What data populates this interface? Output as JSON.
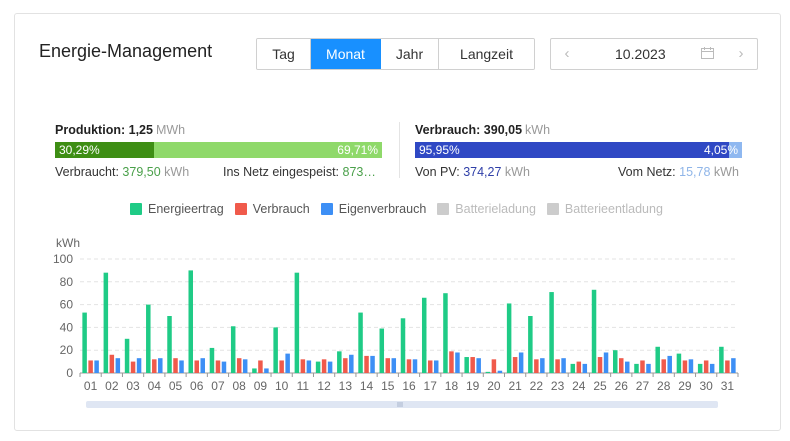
{
  "header": {
    "title": "Energie-Management",
    "tabs": [
      {
        "label": "Tag",
        "active": false
      },
      {
        "label": "Monat",
        "active": true
      },
      {
        "label": "Jahr",
        "active": false
      },
      {
        "label": "Langzeit",
        "active": false
      }
    ],
    "date_picker": {
      "value": "10.2023",
      "prev_icon": "chevron-left-icon",
      "next_icon": "chevron-right-icon",
      "calendar_icon": "calendar-icon"
    }
  },
  "production": {
    "label": "Produktion:",
    "value": "1,25",
    "unit": "MWh",
    "bar": {
      "left_pct_label": "30,29%",
      "right_pct_label": "69,71%",
      "left_share": 0.3029,
      "colors": [
        "#3e8e14",
        "#8fd96a"
      ]
    },
    "consumed_label": "Verbraucht:",
    "consumed_value": "379,50",
    "consumed_unit": "kWh",
    "fed_label": "Ins Netz eingespeist:",
    "fed_value": "873…"
  },
  "consumption": {
    "label": "Verbrauch:",
    "value": "390,05",
    "unit": "kWh",
    "bar": {
      "left_pct_label": "95,95%",
      "right_pct_label": "4,05%",
      "left_share": 0.9595,
      "colors": [
        "#2f48c4",
        "#8fb8f0"
      ]
    },
    "pv_label": "Von PV:",
    "pv_value": "374,27",
    "pv_unit": "kWh",
    "grid_label": "Vom Netz:",
    "grid_value": "15,78",
    "grid_unit": "kWh"
  },
  "legend": [
    {
      "label": "Energieertrag",
      "color": "#1fcb86",
      "active": true
    },
    {
      "label": "Verbrauch",
      "color": "#f05a4b",
      "active": true
    },
    {
      "label": "Eigenverbrauch",
      "color": "#3d8ff5",
      "active": true
    },
    {
      "label": "Batterieladung",
      "color": "#cccccc",
      "active": false
    },
    {
      "label": "Batterieentladung",
      "color": "#cccccc",
      "active": false
    }
  ],
  "chart_data": {
    "type": "bar",
    "ylabel": "kWh",
    "ylim": [
      0,
      100
    ],
    "yticks": [
      0,
      20,
      40,
      60,
      80,
      100
    ],
    "grid": true,
    "categories": [
      "01",
      "02",
      "03",
      "04",
      "05",
      "06",
      "07",
      "08",
      "09",
      "10",
      "11",
      "12",
      "13",
      "14",
      "15",
      "16",
      "17",
      "18",
      "19",
      "20",
      "21",
      "22",
      "23",
      "24",
      "25",
      "26",
      "27",
      "28",
      "29",
      "30",
      "31"
    ],
    "series": [
      {
        "name": "Energieertrag",
        "color": "#1fcb86",
        "values": [
          53,
          88,
          30,
          60,
          50,
          90,
          22,
          41,
          4,
          40,
          88,
          10,
          19,
          53,
          39,
          48,
          66,
          70,
          14,
          1,
          61,
          50,
          71,
          8,
          73,
          20,
          8,
          23,
          17,
          8,
          23
        ]
      },
      {
        "name": "Verbrauch",
        "color": "#f05a4b",
        "values": [
          11,
          16,
          10,
          12,
          13,
          11,
          11,
          13,
          11,
          11,
          12,
          12,
          13,
          15,
          13,
          12,
          11,
          19,
          14,
          12,
          14,
          12,
          12,
          10,
          14,
          13,
          11,
          12,
          11,
          11,
          11
        ]
      },
      {
        "name": "Eigenverbrauch",
        "color": "#3d8ff5",
        "values": [
          11,
          13,
          13,
          13,
          11,
          13,
          10,
          12,
          4,
          17,
          11,
          10,
          16,
          15,
          13,
          12,
          11,
          18,
          13,
          2,
          18,
          13,
          13,
          8,
          18,
          10,
          8,
          15,
          12,
          8,
          13
        ]
      }
    ]
  }
}
